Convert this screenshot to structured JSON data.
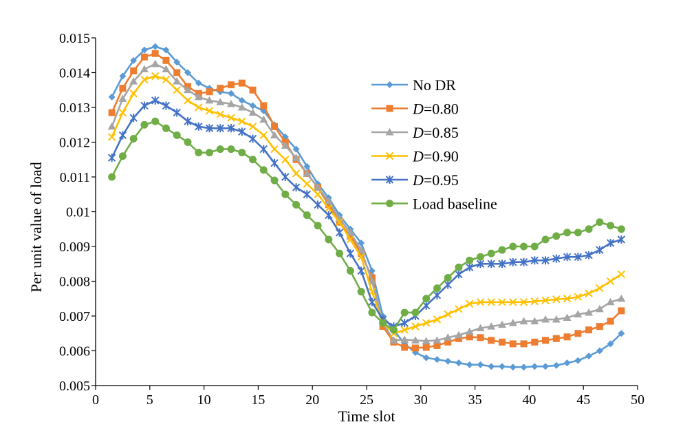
{
  "chart_data": {
    "type": "line",
    "title": "",
    "xlabel": "Time slot",
    "ylabel": "Per unit value of load",
    "xlim": [
      0,
      50
    ],
    "ylim": [
      0.005,
      0.015
    ],
    "xticks": [
      0,
      5,
      10,
      15,
      20,
      25,
      30,
      35,
      40,
      45,
      50
    ],
    "xtick_labels": [
      "0",
      "5",
      "10",
      "15",
      "20",
      "25",
      "30",
      "35",
      "40",
      "45",
      "50"
    ],
    "yticks": [
      0.005,
      0.006,
      0.007,
      0.008,
      0.009,
      0.01,
      0.011,
      0.012,
      0.013,
      0.014,
      0.015
    ],
    "ytick_labels": [
      "0.005",
      "0.006",
      "0.007",
      "0.008",
      "0.009",
      "0.01",
      "0.011",
      "0.012",
      "0.013",
      "0.014",
      "0.015"
    ],
    "grid": false,
    "legend_position": "right-center",
    "x": [
      1.5,
      2.5,
      3.5,
      4.5,
      5.5,
      6.5,
      7.5,
      8.5,
      9.5,
      10.5,
      11.5,
      12.5,
      13.5,
      14.5,
      15.5,
      16.5,
      17.5,
      18.5,
      19.5,
      20.5,
      21.5,
      22.5,
      23.5,
      24.5,
      25.5,
      26.5,
      27.5,
      28.5,
      29.5,
      30.5,
      31.5,
      32.5,
      33.5,
      34.5,
      35.5,
      36.5,
      37.5,
      38.5,
      39.5,
      40.5,
      41.5,
      42.5,
      43.5,
      44.5,
      45.5,
      46.5,
      47.5,
      48.5
    ],
    "series": [
      {
        "name": "No DR",
        "legend_prefix": "",
        "legend_text": " No DR",
        "color": "#5b9bd5",
        "marker": "diamond",
        "values": [
          0.0133,
          0.0139,
          0.01435,
          0.01465,
          0.01475,
          0.01465,
          0.0143,
          0.014,
          0.0137,
          0.01355,
          0.01345,
          0.0134,
          0.0132,
          0.01305,
          0.0129,
          0.0125,
          0.01215,
          0.0118,
          0.0113,
          0.0108,
          0.0104,
          0.0099,
          0.0095,
          0.0091,
          0.0083,
          0.007,
          0.0066,
          0.0062,
          0.00595,
          0.0058,
          0.00575,
          0.0057,
          0.00565,
          0.0056,
          0.0056,
          0.00555,
          0.00555,
          0.00553,
          0.00553,
          0.00555,
          0.00555,
          0.00558,
          0.00565,
          0.00572,
          0.00585,
          0.006,
          0.0062,
          0.0065
        ]
      },
      {
        "name": "D=0.80",
        "legend_prefix": "D",
        "legend_text": "=0.80",
        "color": "#ed7d31",
        "marker": "square",
        "values": [
          0.01285,
          0.01355,
          0.01405,
          0.01445,
          0.01455,
          0.01435,
          0.014,
          0.0136,
          0.0134,
          0.01345,
          0.01355,
          0.01365,
          0.0137,
          0.0135,
          0.01305,
          0.01245,
          0.012,
          0.0115,
          0.0111,
          0.0107,
          0.0102,
          0.0097,
          0.0093,
          0.0088,
          0.0081,
          0.0067,
          0.00625,
          0.0061,
          0.00608,
          0.0061,
          0.00615,
          0.00625,
          0.00635,
          0.0064,
          0.00638,
          0.0063,
          0.00625,
          0.0062,
          0.0062,
          0.00625,
          0.0063,
          0.00635,
          0.0064,
          0.0065,
          0.0066,
          0.0067,
          0.00685,
          0.00715
        ]
      },
      {
        "name": "D=0.85",
        "legend_prefix": "D",
        "legend_text": "=0.85",
        "color": "#a5a5a5",
        "marker": "triangle",
        "values": [
          0.01245,
          0.01325,
          0.01375,
          0.0141,
          0.01425,
          0.0141,
          0.01375,
          0.0135,
          0.0133,
          0.0132,
          0.01315,
          0.0131,
          0.013,
          0.01285,
          0.01265,
          0.0122,
          0.0119,
          0.01155,
          0.0111,
          0.0107,
          0.0103,
          0.0098,
          0.0094,
          0.0089,
          0.008,
          0.0068,
          0.0063,
          0.00632,
          0.0063,
          0.00628,
          0.0063,
          0.00638,
          0.00645,
          0.00655,
          0.00665,
          0.0067,
          0.00675,
          0.0068,
          0.00685,
          0.00685,
          0.0069,
          0.0069,
          0.00695,
          0.00705,
          0.0071,
          0.0072,
          0.0074,
          0.0075
        ]
      },
      {
        "name": "D=0.90",
        "legend_prefix": "D",
        "legend_text": "=0.90",
        "color": "#ffc000",
        "marker": "x",
        "values": [
          0.01215,
          0.01285,
          0.0134,
          0.0138,
          0.0139,
          0.0138,
          0.0135,
          0.0132,
          0.013,
          0.0129,
          0.0128,
          0.0127,
          0.0126,
          0.01245,
          0.0122,
          0.0118,
          0.0115,
          0.0111,
          0.0108,
          0.0105,
          0.0101,
          0.0097,
          0.0092,
          0.0087,
          0.0077,
          0.0068,
          0.0065,
          0.0066,
          0.0067,
          0.0068,
          0.0069,
          0.00705,
          0.0072,
          0.00735,
          0.0074,
          0.0074,
          0.0074,
          0.0074,
          0.0074,
          0.00742,
          0.00745,
          0.00748,
          0.0075,
          0.00755,
          0.00765,
          0.0078,
          0.008,
          0.0082
        ]
      },
      {
        "name": "D=0.95",
        "legend_prefix": "D",
        "legend_text": "=0.95",
        "color": "#4472c4",
        "marker": "star",
        "values": [
          0.01155,
          0.0122,
          0.0127,
          0.01305,
          0.0132,
          0.01305,
          0.01285,
          0.0126,
          0.01245,
          0.0124,
          0.0124,
          0.0124,
          0.0123,
          0.0121,
          0.0118,
          0.0114,
          0.011,
          0.0107,
          0.0105,
          0.0102,
          0.0099,
          0.0094,
          0.0088,
          0.0083,
          0.0074,
          0.0069,
          0.0067,
          0.0068,
          0.007,
          0.0073,
          0.0076,
          0.0079,
          0.0082,
          0.0084,
          0.0085,
          0.0085,
          0.0085,
          0.00855,
          0.00855,
          0.0086,
          0.0086,
          0.00865,
          0.0087,
          0.0087,
          0.00875,
          0.0089,
          0.0091,
          0.0092
        ]
      },
      {
        "name": "Load baseline",
        "legend_prefix": "",
        "legend_text": "Load baseline",
        "color": "#70ad47",
        "marker": "circle",
        "values": [
          0.011,
          0.0116,
          0.0121,
          0.0125,
          0.0126,
          0.0124,
          0.0122,
          0.012,
          0.0117,
          0.0117,
          0.0118,
          0.0118,
          0.0117,
          0.0115,
          0.0112,
          0.0109,
          0.0105,
          0.0102,
          0.0099,
          0.0096,
          0.0092,
          0.0088,
          0.0083,
          0.0077,
          0.0071,
          0.0068,
          0.0066,
          0.0071,
          0.0071,
          0.0075,
          0.0078,
          0.0081,
          0.0084,
          0.0086,
          0.0087,
          0.0088,
          0.0089,
          0.009,
          0.009,
          0.009,
          0.0092,
          0.0093,
          0.0094,
          0.0094,
          0.0095,
          0.0097,
          0.0096,
          0.0095
        ]
      }
    ]
  }
}
